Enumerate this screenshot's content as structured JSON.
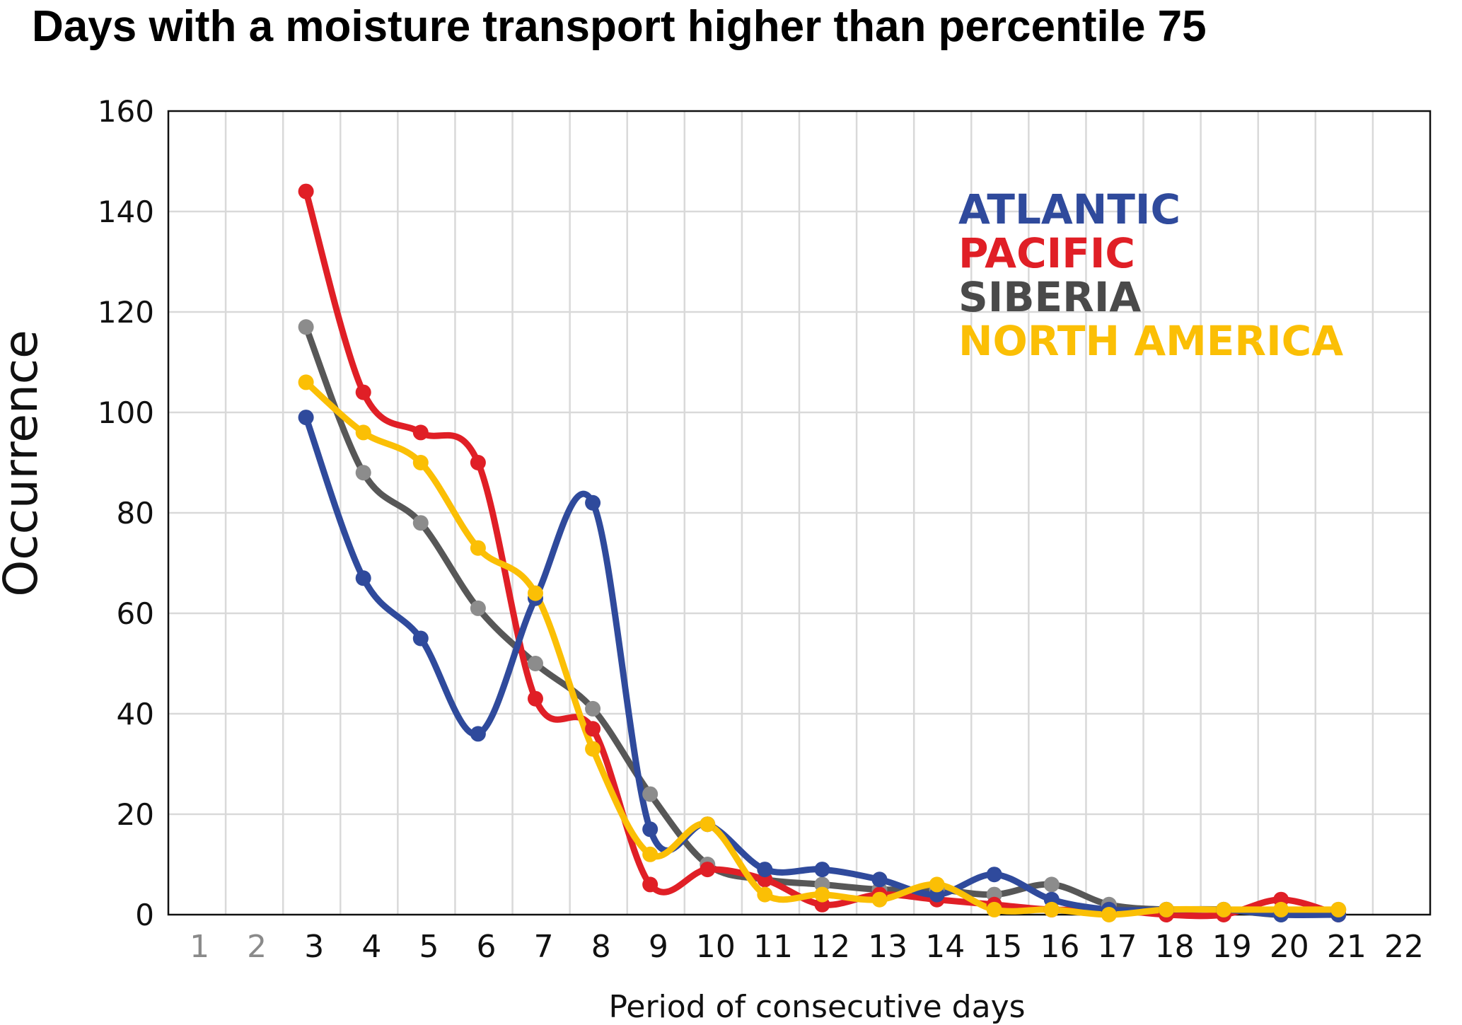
{
  "chart_data": {
    "type": "line",
    "title": "Days with a moisture transport higher than percentile 75",
    "xlabel": "Period of consecutive days",
    "ylabel": "Occurrence",
    "x_ticks": [
      "1",
      "2",
      "3",
      "4",
      "5",
      "6",
      "7",
      "8",
      "9",
      "10",
      "11",
      "12",
      "13",
      "14",
      "15",
      "16",
      "17",
      "18",
      "19",
      "20",
      "21",
      "22"
    ],
    "muted_x_ticks": [
      "1",
      "2"
    ],
    "xlim": [
      0,
      22
    ],
    "ylim": [
      0,
      160
    ],
    "y_ticks": [
      "0",
      "20",
      "40",
      "60",
      "80",
      "100",
      "120",
      "140",
      "160"
    ],
    "grid": true,
    "legend_position": "top-right",
    "x": [
      3,
      4,
      5,
      6,
      7,
      8,
      9,
      10,
      11,
      12,
      13,
      14,
      15,
      16,
      17,
      18,
      19,
      20,
      21
    ],
    "series": [
      {
        "name": "SIBERIA",
        "color": "#575757",
        "marker_color": "#8c8c8c",
        "values": [
          117,
          88,
          78,
          61,
          50,
          41,
          24,
          10,
          7,
          6,
          5,
          5,
          4,
          6,
          2,
          1,
          1,
          0,
          1
        ]
      },
      {
        "name": "PACIFIC",
        "color": "#e01f26",
        "marker_color": "#e01f26",
        "values": [
          144,
          104,
          96,
          90,
          43,
          37,
          6,
          9,
          7,
          2,
          4,
          3,
          2,
          1,
          1,
          0,
          0,
          3,
          0
        ]
      },
      {
        "name": "ATLANTIC",
        "color": "#2f4a9c",
        "marker_color": "#2f4a9c",
        "values": [
          99,
          67,
          55,
          36,
          63,
          82,
          17,
          18,
          9,
          9,
          7,
          4,
          8,
          3,
          1,
          1,
          1,
          0,
          0
        ]
      },
      {
        "name": "NORTH AMERICA",
        "color": "#fbbf05",
        "marker_color": "#fbbf05",
        "values": [
          106,
          96,
          90,
          73,
          64,
          33,
          12,
          18,
          4,
          4,
          3,
          6,
          1,
          1,
          0,
          1,
          1,
          1,
          1
        ]
      }
    ],
    "legend": [
      {
        "name": "ATLANTIC",
        "color": "#2f4a9c"
      },
      {
        "name": "PACIFIC",
        "color": "#e01f26"
      },
      {
        "name": "SIBERIA",
        "color": "#4a4a4a"
      },
      {
        "name": "NORTH AMERICA",
        "color": "#fbbf05"
      }
    ]
  }
}
